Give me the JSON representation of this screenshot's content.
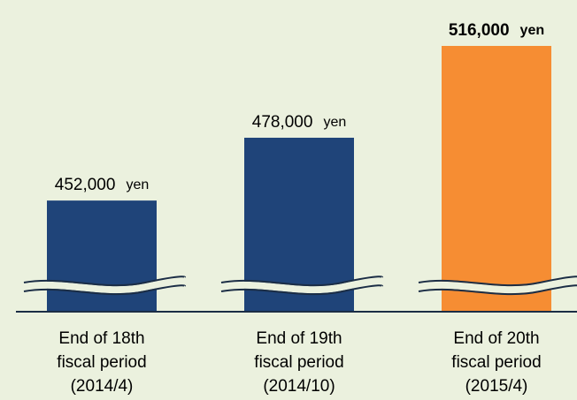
{
  "chart_data": {
    "type": "bar",
    "categories": [
      [
        "End of 18th",
        "fiscal period",
        "(2014/4)"
      ],
      [
        "End of 19th",
        "fiscal period",
        "(2014/10)"
      ],
      [
        "End of 20th",
        "fiscal period",
        "(2015/4)"
      ]
    ],
    "values": [
      452000,
      478000,
      516000
    ],
    "value_labels": [
      "452,000",
      "478,000",
      "516,000"
    ],
    "unit": "yen",
    "colors": [
      "#1f4479",
      "#1f4479",
      "#f68d33"
    ],
    "ylim": [
      406000,
      516000
    ]
  }
}
